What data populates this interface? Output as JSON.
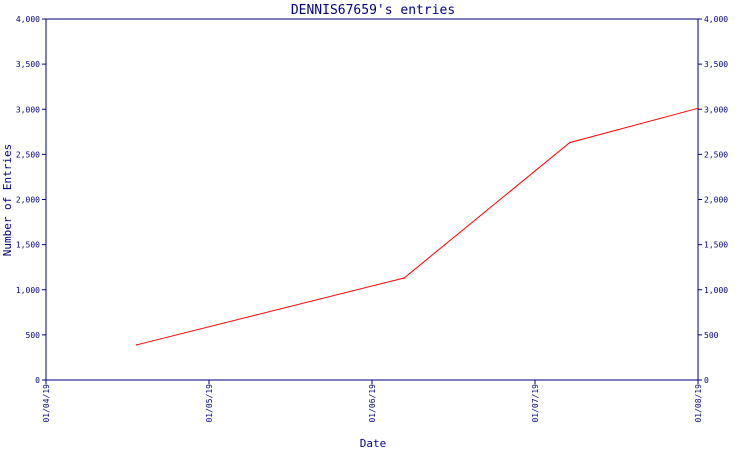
{
  "chart_data": {
    "type": "line",
    "title": "DENNIS67659's entries",
    "xlabel": "Date",
    "ylabel": "Number of Entries",
    "x_ticks": [
      "01/04/19",
      "01/05/19",
      "01/06/19",
      "01/07/19",
      "01/08/19"
    ],
    "y_ticks": [
      "0",
      "500",
      "1,000",
      "1,500",
      "2,000",
      "2,500",
      "3,000",
      "3,500",
      "4,000"
    ],
    "ylim": [
      0,
      4000
    ],
    "xlim": [
      "2019-04-01",
      "2019-08-01"
    ],
    "grid": false,
    "legend": "none",
    "colors": {
      "line": "#ff0000",
      "axis": "#000080"
    },
    "series": [
      {
        "x": [
          "2019-04-18",
          "2019-06-07",
          "2019-07-08",
          "2019-08-01"
        ],
        "y": [
          390,
          1130,
          2630,
          3010
        ]
      }
    ]
  }
}
